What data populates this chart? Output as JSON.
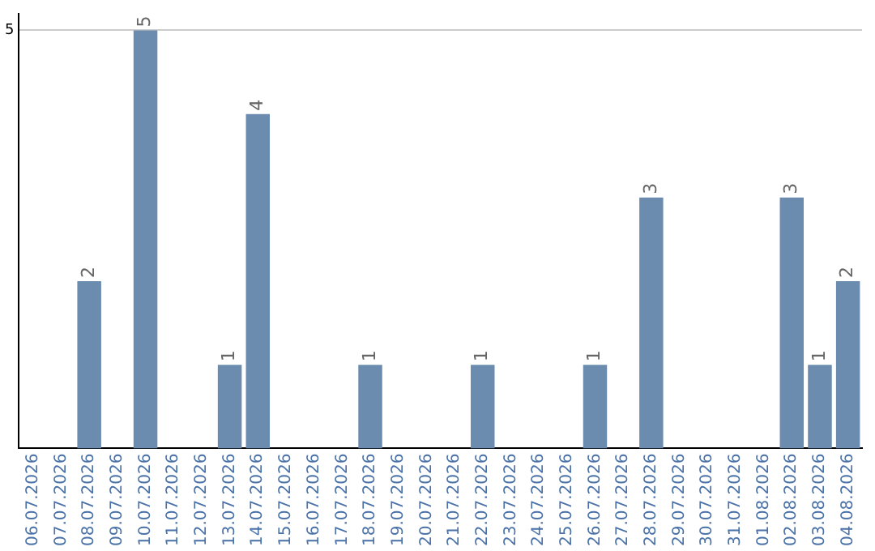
{
  "chart_data": {
    "type": "bar",
    "categories": [
      "06.07.2026",
      "07.07.2026",
      "08.07.2026",
      "09.07.2026",
      "10.07.2026",
      "11.07.2026",
      "12.07.2026",
      "13.07.2026",
      "14.07.2026",
      "15.07.2026",
      "16.07.2026",
      "17.07.2026",
      "18.07.2026",
      "19.07.2026",
      "20.07.2026",
      "21.07.2026",
      "22.07.2026",
      "23.07.2026",
      "24.07.2026",
      "25.07.2026",
      "26.07.2026",
      "27.07.2026",
      "28.07.2026",
      "29.07.2026",
      "30.07.2026",
      "31.07.2026",
      "01.08.2026",
      "02.08.2026",
      "03.08.2026",
      "04.08.2026"
    ],
    "values": [
      0,
      0,
      2,
      0,
      5,
      0,
      0,
      1,
      4,
      0,
      0,
      0,
      1,
      0,
      0,
      0,
      1,
      0,
      0,
      0,
      1,
      0,
      3,
      0,
      0,
      0,
      0,
      3,
      1,
      2
    ],
    "value_labels": [
      null,
      null,
      "2",
      null,
      "5",
      null,
      null,
      "1",
      "4",
      null,
      null,
      null,
      "1",
      null,
      null,
      null,
      "1",
      null,
      null,
      null,
      "1",
      null,
      "3",
      null,
      null,
      null,
      null,
      "3",
      "1",
      "2"
    ],
    "color": "#6b8cae",
    "ylim": [
      0,
      5.2
    ],
    "yticks": [
      5
    ],
    "grid": "y"
  }
}
